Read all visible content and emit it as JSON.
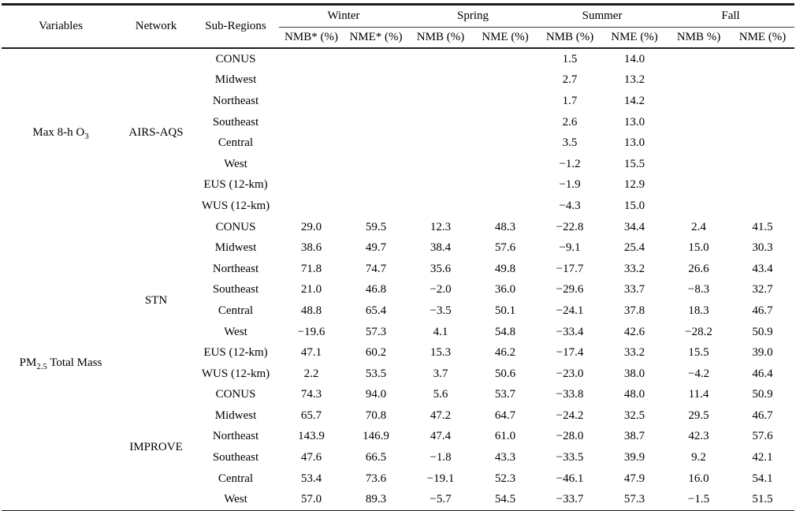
{
  "header": {
    "variables": "Variables",
    "network": "Network",
    "sub_regions": "Sub-Regions",
    "seasons": [
      {
        "name": "Winter",
        "nmb": "NMB* (%)",
        "nme": "NME* (%)"
      },
      {
        "name": "Spring",
        "nmb": "NMB (%)",
        "nme": "NME (%)"
      },
      {
        "name": "Summer",
        "nmb": "NMB (%)",
        "nme": "NME (%)"
      },
      {
        "name": "Fall",
        "nmb": "NMB %)",
        "nme": "NME (%)"
      }
    ]
  },
  "variable_groups": [
    {
      "variable": [
        {
          "t": "Max 8-h O"
        },
        {
          "sub": "3"
        }
      ],
      "networks": [
        {
          "name": "AIRS-AQS",
          "rows": [
            {
              "region": "CONUS",
              "values": [
                "",
                "",
                "",
                "",
                "1.5",
                "14.0",
                "",
                ""
              ]
            },
            {
              "region": "Midwest",
              "values": [
                "",
                "",
                "",
                "",
                "2.7",
                "13.2",
                "",
                ""
              ]
            },
            {
              "region": "Northeast",
              "values": [
                "",
                "",
                "",
                "",
                "1.7",
                "14.2",
                "",
                ""
              ]
            },
            {
              "region": "Southeast",
              "values": [
                "",
                "",
                "",
                "",
                "2.6",
                "13.0",
                "",
                ""
              ]
            },
            {
              "region": "Central",
              "values": [
                "",
                "",
                "",
                "",
                "3.5",
                "13.0",
                "",
                ""
              ]
            },
            {
              "region": "West",
              "values": [
                "",
                "",
                "",
                "",
                "−1.2",
                "15.5",
                "",
                ""
              ]
            },
            {
              "region": "EUS (12-km)",
              "values": [
                "",
                "",
                "",
                "",
                "−1.9",
                "12.9",
                "",
                ""
              ]
            },
            {
              "region": "WUS (12-km)",
              "values": [
                "",
                "",
                "",
                "",
                "−4.3",
                "15.0",
                "",
                ""
              ]
            }
          ]
        }
      ]
    },
    {
      "variable": [
        {
          "t": "PM"
        },
        {
          "sub": "2.5"
        },
        {
          "t": " Total Mass"
        }
      ],
      "networks": [
        {
          "name": "STN",
          "rows": [
            {
              "region": "CONUS",
              "values": [
                "29.0",
                "59.5",
                "12.3",
                "48.3",
                "−22.8",
                "34.4",
                "2.4",
                "41.5"
              ]
            },
            {
              "region": "Midwest",
              "values": [
                "38.6",
                "49.7",
                "38.4",
                "57.6",
                "−9.1",
                "25.4",
                "15.0",
                "30.3"
              ]
            },
            {
              "region": "Northeast",
              "values": [
                "71.8",
                "74.7",
                "35.6",
                "49.8",
                "−17.7",
                "33.2",
                "26.6",
                "43.4"
              ]
            },
            {
              "region": "Southeast",
              "values": [
                "21.0",
                "46.8",
                "−2.0",
                "36.0",
                "−29.6",
                "33.7",
                "−8.3",
                "32.7"
              ]
            },
            {
              "region": "Central",
              "values": [
                "48.8",
                "65.4",
                "−3.5",
                "50.1",
                "−24.1",
                "37.8",
                "18.3",
                "46.7"
              ]
            },
            {
              "region": "West",
              "values": [
                "−19.6",
                "57.3",
                "4.1",
                "54.8",
                "−33.4",
                "42.6",
                "−28.2",
                "50.9"
              ]
            },
            {
              "region": "EUS (12-km)",
              "values": [
                "47.1",
                "60.2",
                "15.3",
                "46.2",
                "−17.4",
                "33.2",
                "15.5",
                "39.0"
              ]
            },
            {
              "region": "WUS (12-km)",
              "values": [
                "2.2",
                "53.5",
                "3.7",
                "50.6",
                "−23.0",
                "38.0",
                "−4.2",
                "46.4"
              ]
            }
          ]
        },
        {
          "name": "IMPROVE",
          "rows": [
            {
              "region": "CONUS",
              "values": [
                "74.3",
                "94.0",
                "5.6",
                "53.7",
                "−33.8",
                "48.0",
                "11.4",
                "50.9"
              ]
            },
            {
              "region": "Midwest",
              "values": [
                "65.7",
                "70.8",
                "47.2",
                "64.7",
                "−24.2",
                "32.5",
                "29.5",
                "46.7"
              ]
            },
            {
              "region": "Northeast",
              "values": [
                "143.9",
                "146.9",
                "47.4",
                "61.0",
                "−28.0",
                "38.7",
                "42.3",
                "57.6"
              ]
            },
            {
              "region": "Southeast",
              "values": [
                "47.6",
                "66.5",
                "−1.8",
                "43.3",
                "−33.5",
                "39.9",
                "9.2",
                "42.1"
              ]
            },
            {
              "region": "Central",
              "values": [
                "53.4",
                "73.6",
                "−19.1",
                "52.3",
                "−46.1",
                "47.9",
                "16.0",
                "54.1"
              ]
            },
            {
              "region": "West",
              "values": [
                "57.0",
                "89.3",
                "−5.7",
                "54.5",
                "−33.7",
                "57.3",
                "−1.5",
                "51.5"
              ]
            }
          ]
        }
      ]
    }
  ]
}
